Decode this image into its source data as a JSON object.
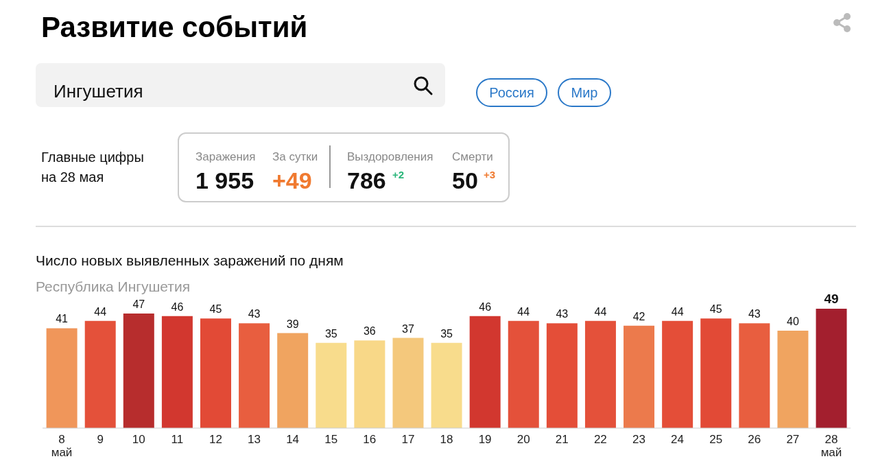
{
  "chart_data": {
    "type": "bar",
    "title": "Число новых выявленных заражений по дням",
    "subtitle": "Республика Ингушетия",
    "categories": [
      "8\nмай",
      "9",
      "10",
      "11",
      "12",
      "13",
      "14",
      "15",
      "16",
      "17",
      "18",
      "19",
      "20",
      "21",
      "22",
      "23",
      "24",
      "25",
      "26",
      "27",
      "28\nмай"
    ],
    "values": [
      41,
      44,
      47,
      46,
      45,
      43,
      39,
      35,
      36,
      37,
      35,
      46,
      44,
      43,
      44,
      42,
      44,
      45,
      43,
      40,
      49
    ],
    "colors": [
      "#f0965a",
      "#e4513a",
      "#b72d2d",
      "#d2372f",
      "#e24a36",
      "#e85e3f",
      "#f0a460",
      "#f8dc8c",
      "#f8d888",
      "#f4c87c",
      "#f8dc8c",
      "#d2372f",
      "#e4513a",
      "#e44e38",
      "#e4513a",
      "#ec7a4c",
      "#e44e38",
      "#e24a36",
      "#e85e3f",
      "#f0a460",
      "#a31f2e"
    ],
    "data_labels": true,
    "grid": false,
    "legend": false,
    "annotations": [
      "Развитие событий",
      "Ингушетия",
      "Россия",
      "Мир",
      "Главные цифры\nна 28 мая",
      "Заражения",
      "1 955",
      "За сутки",
      "+49",
      "Выздоровления",
      "786",
      "+2",
      "Смерти",
      "50",
      "+3"
    ]
  }
}
